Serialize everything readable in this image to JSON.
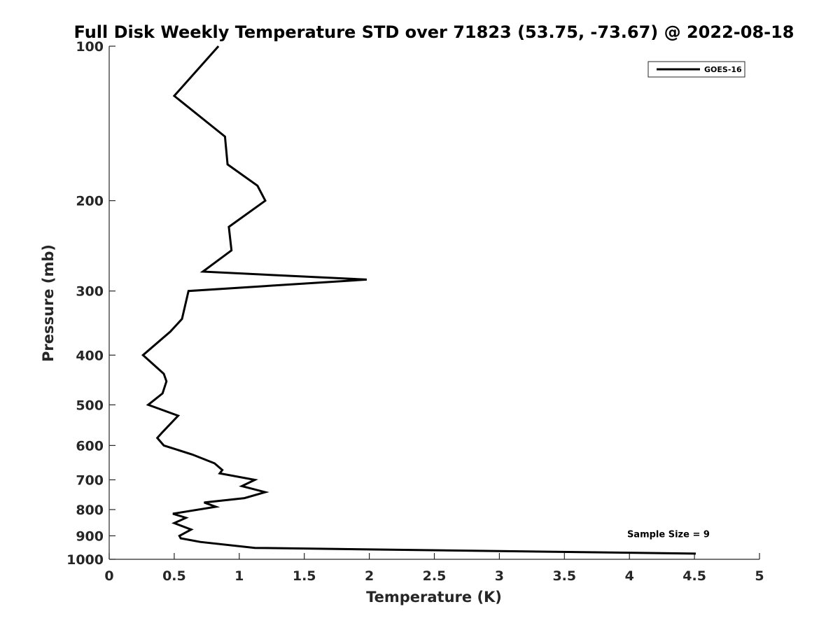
{
  "chart_data": {
    "type": "line",
    "title": "Full Disk Weekly Temperature STD over 71823 (53.75, -73.67) @ 2022-08-18",
    "xlabel": "Temperature (K)",
    "ylabel": "Pressure (mb)",
    "xlim": [
      0,
      5
    ],
    "ylim": [
      100,
      1000
    ],
    "yscale": "log",
    "y_reversed": true,
    "x_ticks": [
      0,
      0.5,
      1,
      1.5,
      2,
      2.5,
      3,
      3.5,
      4,
      4.5,
      5
    ],
    "x_tick_labels": [
      "0",
      "0.5",
      "1",
      "1.5",
      "2",
      "2.5",
      "3",
      "3.5",
      "4",
      "4.5",
      "5"
    ],
    "y_ticks": [
      100,
      200,
      300,
      400,
      500,
      600,
      700,
      800,
      900,
      1000
    ],
    "y_tick_labels": [
      "100",
      "200",
      "300",
      "400",
      "500",
      "600",
      "700",
      "800",
      "900",
      "1000"
    ],
    "grid": false,
    "legend_position": "top-right",
    "series": [
      {
        "name": "GOES-16",
        "color": "#000000",
        "x": [
          0.84,
          0.5,
          0.89,
          0.91,
          1.14,
          1.2,
          0.92,
          0.94,
          0.72,
          1.98,
          0.61,
          0.56,
          0.47,
          0.26,
          0.42,
          0.44,
          0.41,
          0.3,
          0.53,
          0.41,
          0.37,
          0.42,
          0.64,
          0.81,
          0.87,
          0.85,
          1.12,
          1.02,
          1.2,
          1.04,
          0.73,
          0.82,
          0.49,
          0.59,
          0.5,
          0.63,
          0.54,
          0.55,
          0.7,
          1.12,
          4.51
        ],
        "y": [
          100,
          125,
          150,
          170,
          187,
          200,
          225,
          250,
          275,
          285,
          300,
          340,
          360,
          400,
          435,
          450,
          475,
          500,
          525,
          565,
          580,
          600,
          625,
          650,
          670,
          680,
          700,
          720,
          740,
          760,
          775,
          790,
          815,
          830,
          850,
          875,
          900,
          910,
          925,
          950,
          975
        ]
      }
    ],
    "annotations": [
      {
        "text": "Sample Size = 9",
        "x": 4.3,
        "y": 895
      }
    ]
  }
}
